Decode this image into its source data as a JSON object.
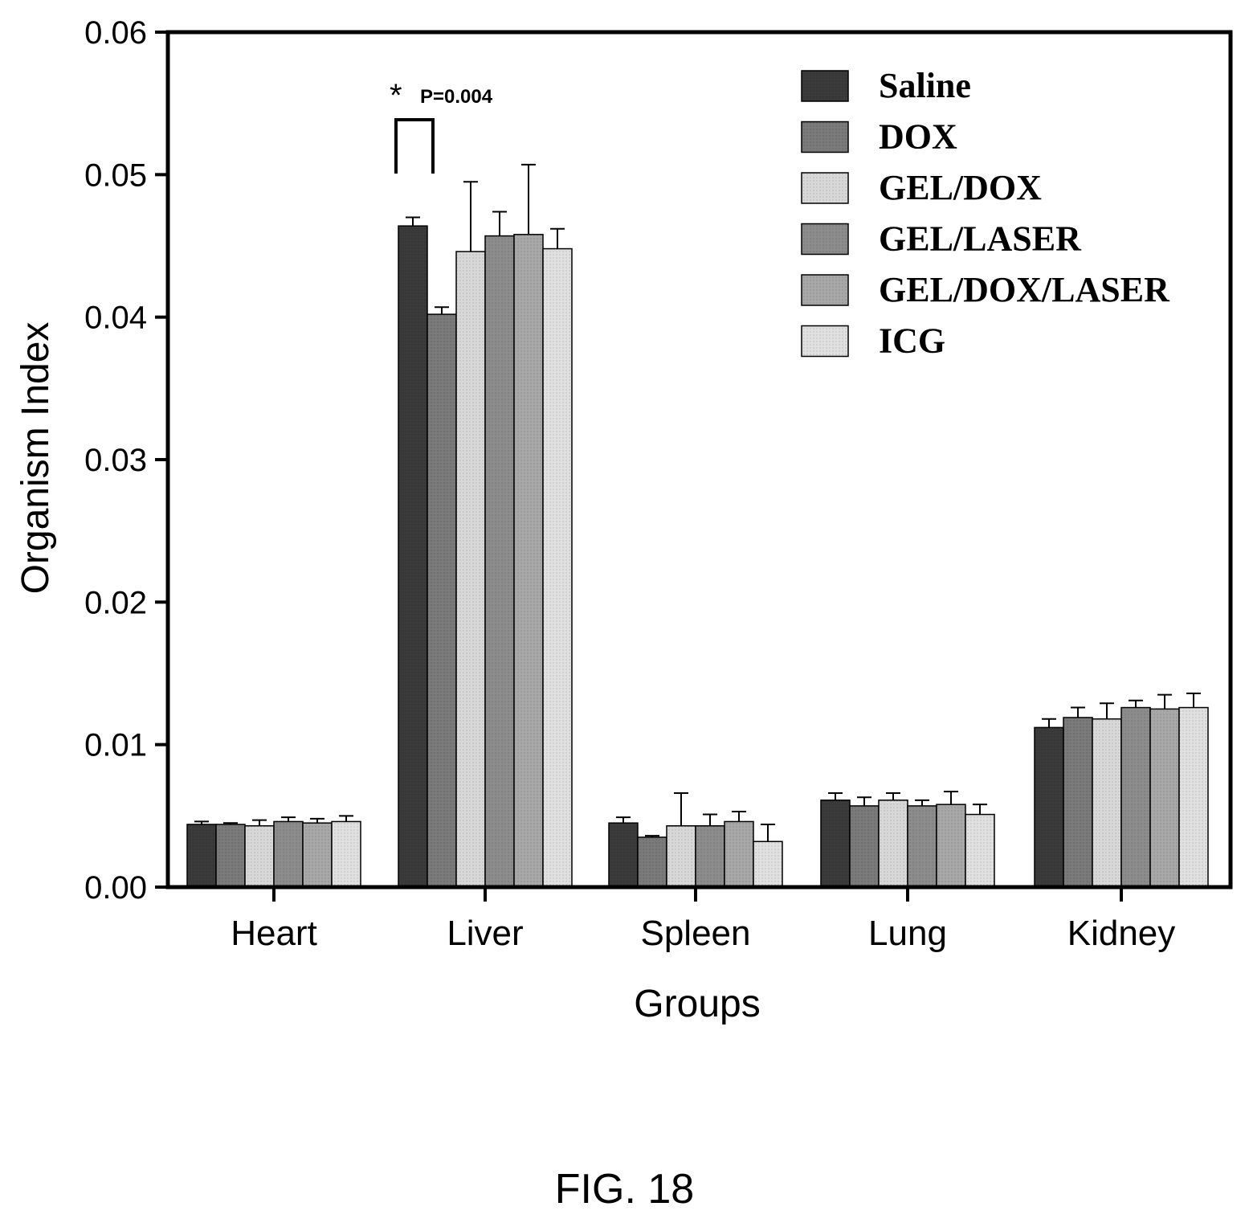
{
  "chart_data": {
    "type": "bar",
    "xlabel": "Groups",
    "ylabel": "Organism Index",
    "ylim": [
      0,
      0.06
    ],
    "yticks": [
      "0.00",
      "0.01",
      "0.02",
      "0.03",
      "0.04",
      "0.05",
      "0.06"
    ],
    "categories": [
      "Heart",
      "Liver",
      "Spleen",
      "Lung",
      "Kidney"
    ],
    "legend_position": "top-right",
    "series": [
      {
        "name": "Saline",
        "color": "#3a3a3a",
        "values": [
          0.0044,
          0.0464,
          0.0045,
          0.0061,
          0.0112
        ],
        "errors": [
          0.0002,
          0.0006,
          0.0004,
          0.0005,
          0.0006
        ]
      },
      {
        "name": "DOX",
        "color": "#7a7a7a",
        "values": [
          0.0044,
          0.0402,
          0.0035,
          0.0057,
          0.0119
        ],
        "errors": [
          0.0001,
          0.0005,
          0.0001,
          0.0006,
          0.0007
        ]
      },
      {
        "name": "GEL/DOX",
        "color": "#d8d8d8",
        "values": [
          0.0043,
          0.0446,
          0.0043,
          0.0061,
          0.0118
        ],
        "errors": [
          0.0004,
          0.0049,
          0.0023,
          0.0005,
          0.0011
        ]
      },
      {
        "name": "GEL/LASER",
        "color": "#8c8c8c",
        "values": [
          0.0046,
          0.0457,
          0.0043,
          0.0057,
          0.0126
        ],
        "errors": [
          0.0003,
          0.0017,
          0.0008,
          0.0004,
          0.0005
        ]
      },
      {
        "name": "GEL/DOX/LASER",
        "color": "#a8a8a8",
        "values": [
          0.0045,
          0.0458,
          0.0046,
          0.0058,
          0.0125
        ],
        "errors": [
          0.0003,
          0.0049,
          0.0007,
          0.0009,
          0.001
        ]
      },
      {
        "name": "ICG",
        "color": "#e0e0e0",
        "values": [
          0.0046,
          0.0448,
          0.0032,
          0.0051,
          0.0126
        ],
        "errors": [
          0.0004,
          0.0014,
          0.0012,
          0.0007,
          0.001
        ]
      }
    ],
    "annotations": [
      {
        "text": "*",
        "subtext": "P=0.004"
      }
    ]
  },
  "caption": "FIG. 18"
}
